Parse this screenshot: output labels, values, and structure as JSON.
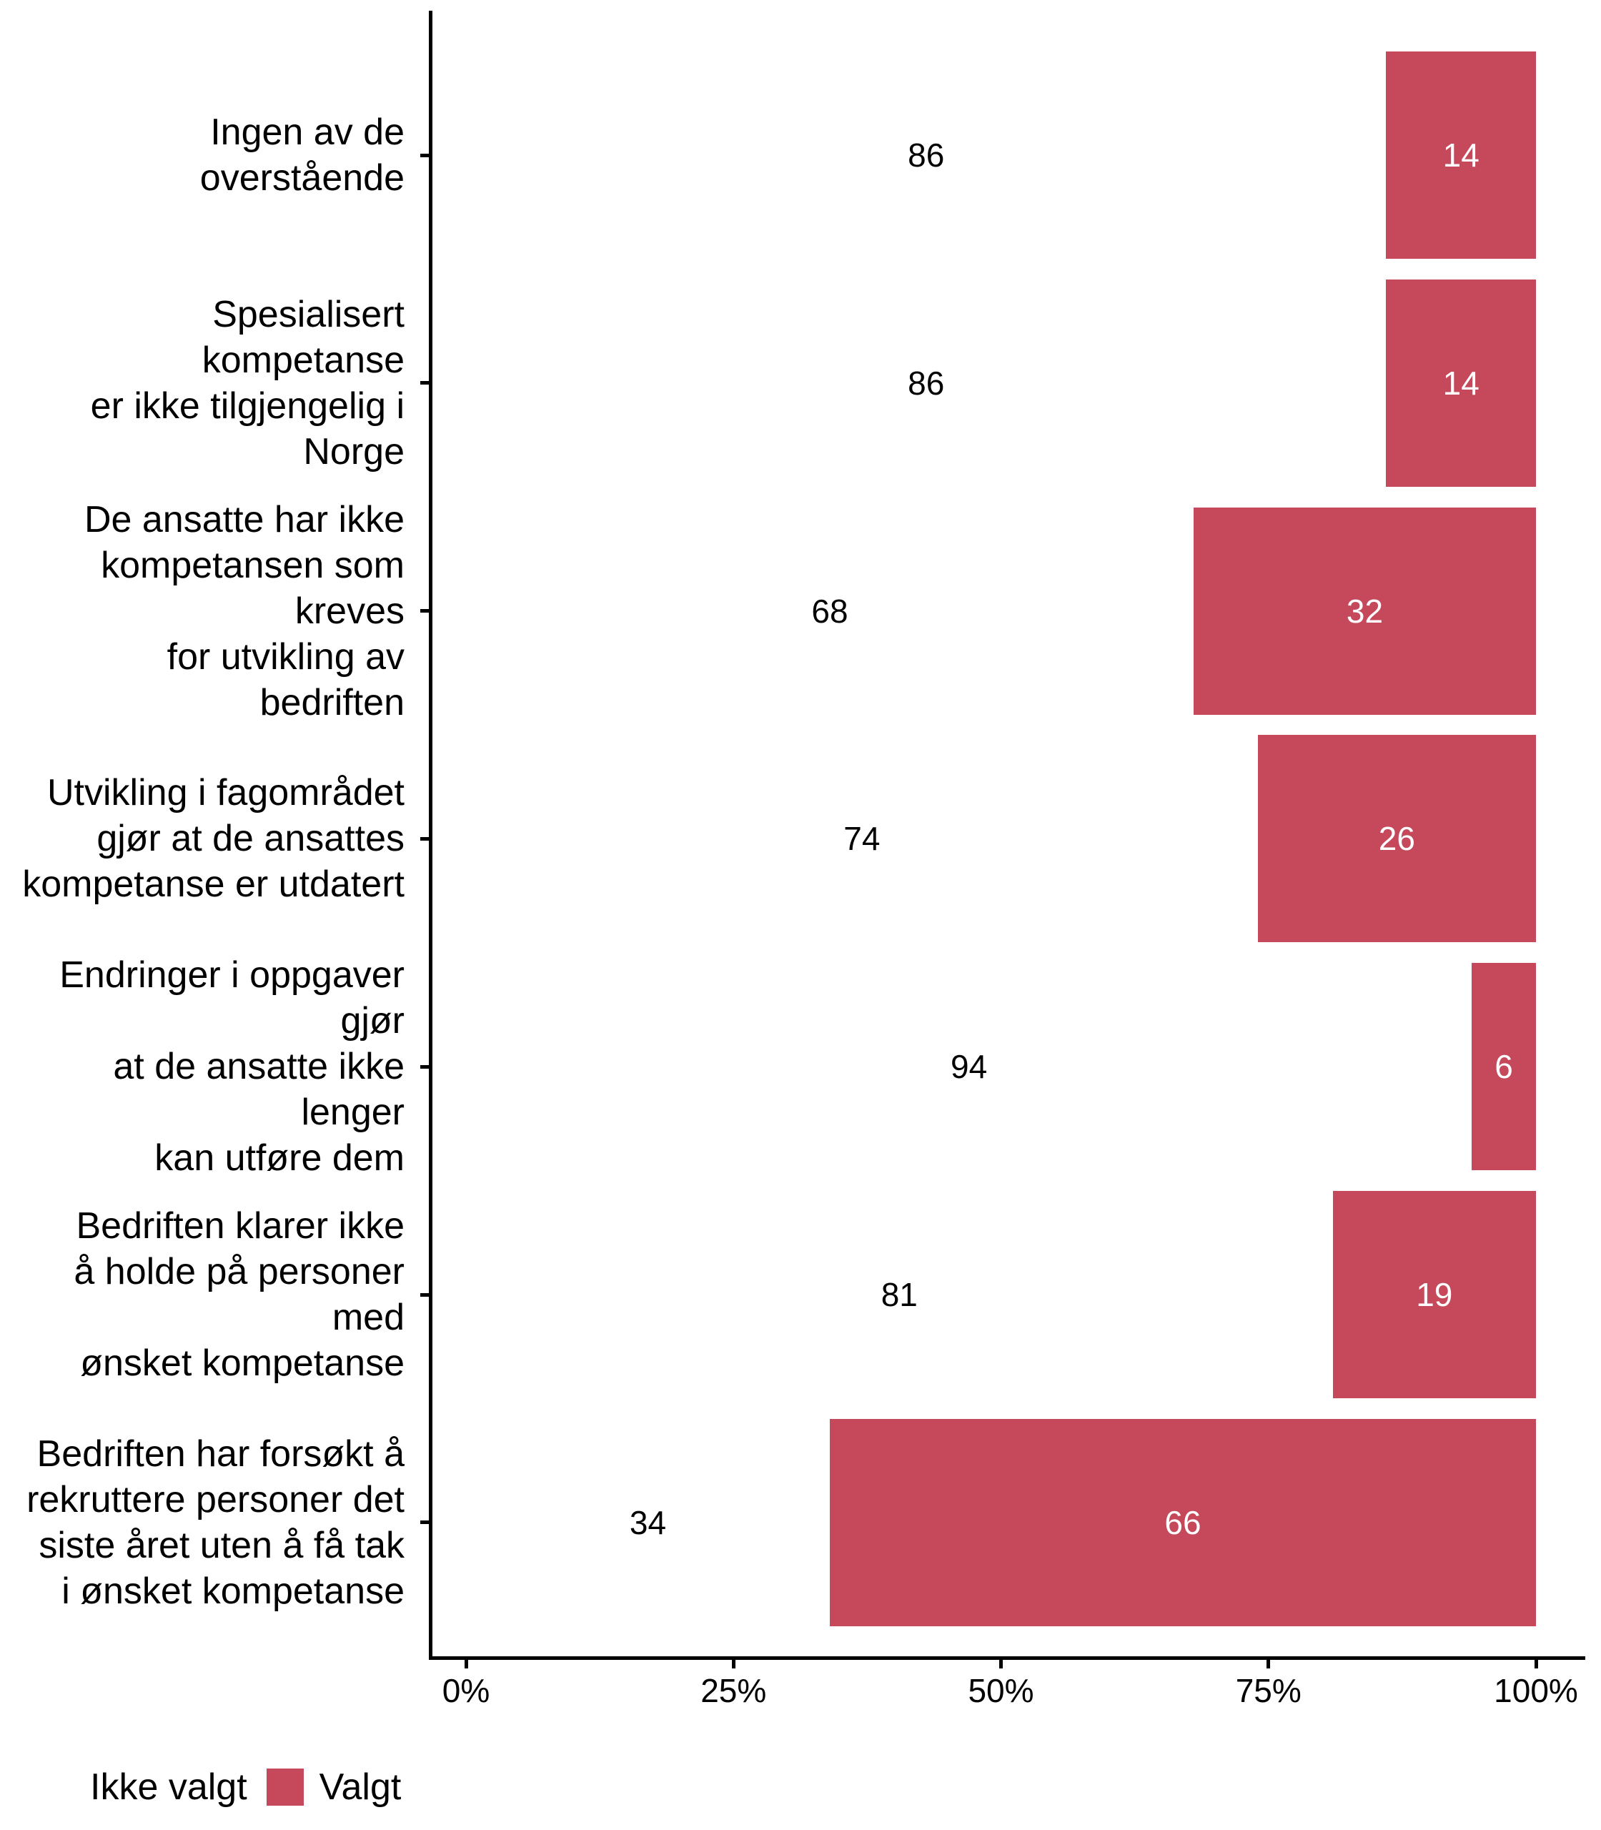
{
  "chart_data": {
    "type": "bar",
    "orientation": "horizontal",
    "stacked": true,
    "units": "percent",
    "title": "",
    "xlabel": "",
    "ylabel": "",
    "xlim": [
      0,
      100
    ],
    "grid": "off",
    "legend_position": "bottom-left",
    "categories": [
      "Ingen av de overstående",
      "Spesialisert kompetanse\ner ikke tilgjengelig i\nNorge",
      "De ansatte har ikke\nkompetansen som kreves\nfor utvikling av\nbedriften",
      "Utvikling i fagområdet\ngjør at de ansattes\nkompetanse er utdatert",
      "Endringer i oppgaver gjør\nat de ansatte ikke lenger\nkan utføre dem",
      "Bedriften klarer ikke\nå holde på personer med\nønsket kompetanse",
      "Bedriften har forsøkt å\nrekruttere personer det\nsiste året uten å få tak\ni ønsket kompetanse"
    ],
    "series": [
      {
        "name": "Ikke valgt",
        "color": "#FFFFFF",
        "label_color": "#000000",
        "values": [
          86,
          86,
          68,
          74,
          94,
          81,
          34
        ]
      },
      {
        "name": "Valgt",
        "color": "#C5495B",
        "label_color": "#FFFFFF",
        "values": [
          14,
          14,
          32,
          26,
          6,
          19,
          66
        ]
      }
    ],
    "x_ticks": [
      {
        "value": 0,
        "label": "0%"
      },
      {
        "value": 25,
        "label": "25%"
      },
      {
        "value": 50,
        "label": "50%"
      },
      {
        "value": 75,
        "label": "75%"
      },
      {
        "value": 100,
        "label": "100%"
      }
    ]
  },
  "legend": {
    "items": [
      {
        "label": "Ikke valgt",
        "color": "#FFFFFF"
      },
      {
        "label": "Valgt",
        "color": "#C5495B"
      }
    ]
  },
  "colors": {
    "bar_selected": "#C5495B",
    "bar_not_selected": "#FFFFFF",
    "axis": "#000000",
    "text": "#000000",
    "value_label_on_red": "#FFFFFF",
    "value_label_on_white": "#000000"
  }
}
